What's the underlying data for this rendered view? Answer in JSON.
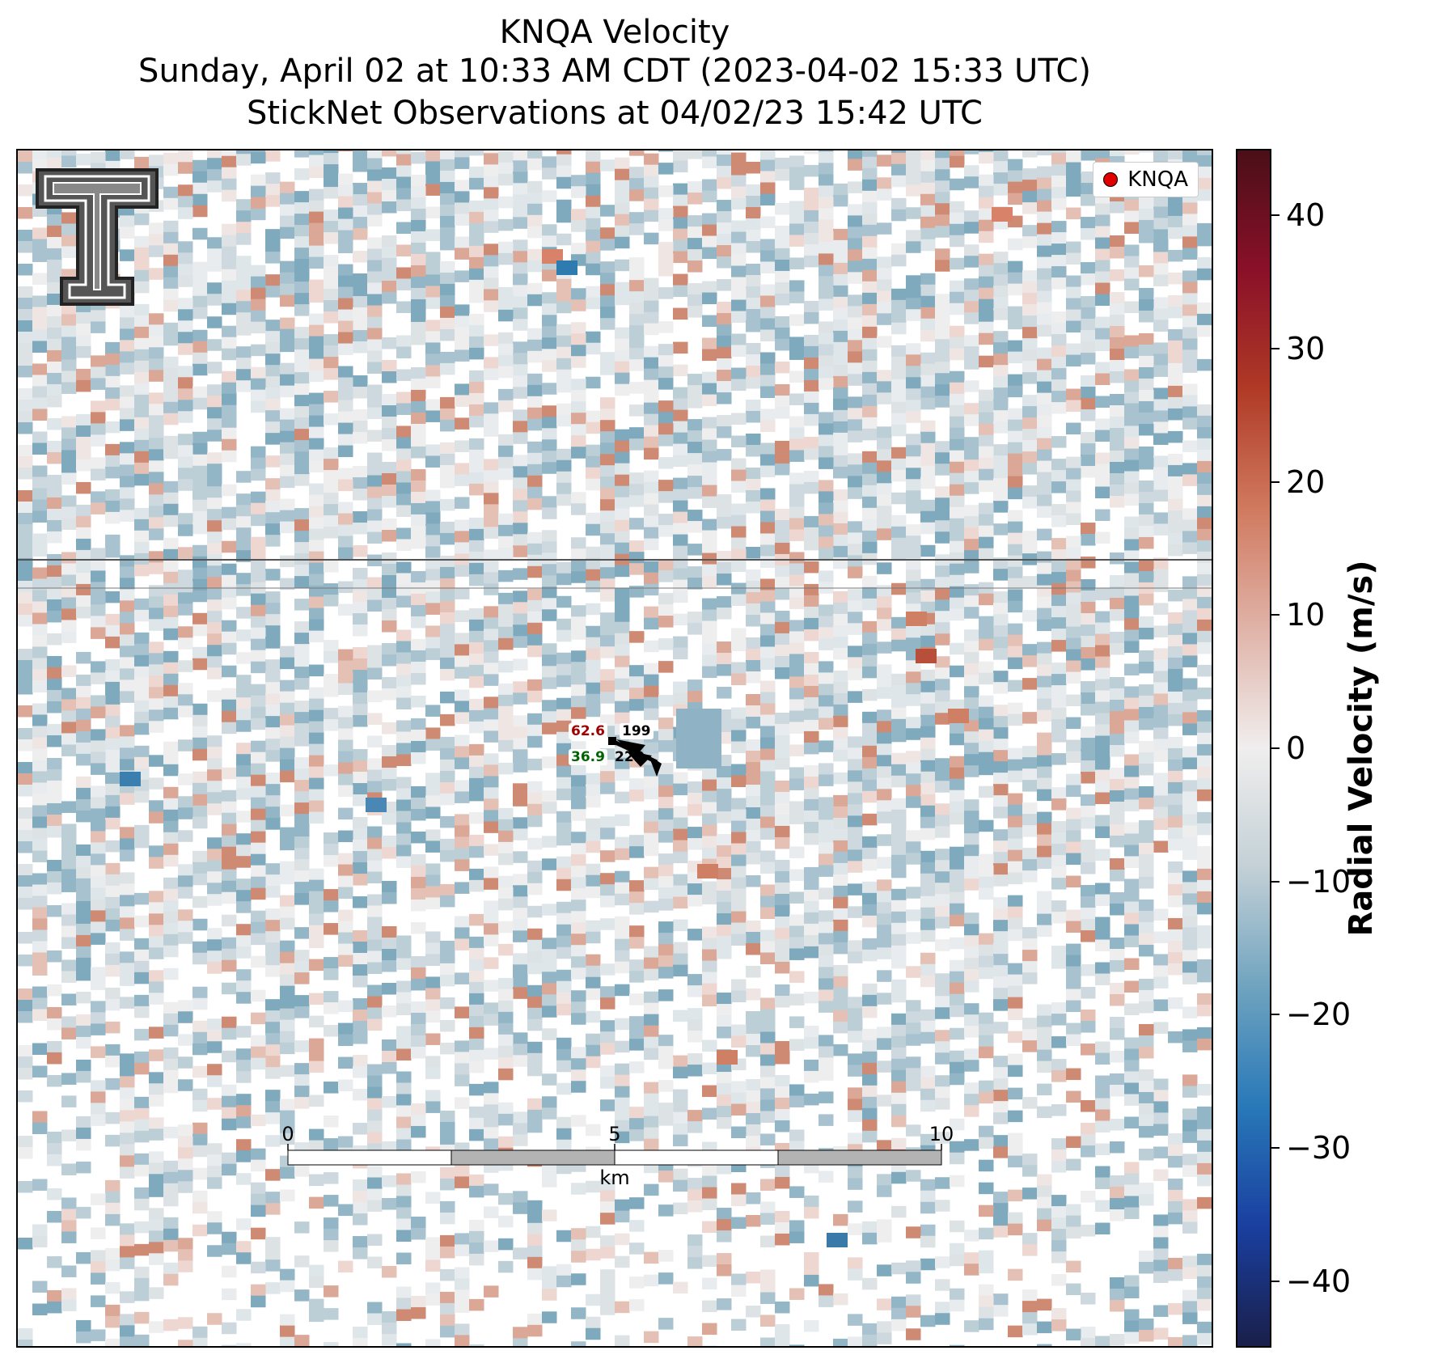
{
  "titles": {
    "line1": "KNQA Velocity",
    "line2": "Sunday, April 02 at 10:33 AM CDT (2023-04-02 15:33 UTC)",
    "line3": "StickNet Observations at 04/02/23 15:42 UTC"
  },
  "legend": {
    "label": "KNQA",
    "marker_color": "#e00000"
  },
  "colorbar": {
    "title": "Radial Velocity (m/s)",
    "min": -45,
    "max": 45,
    "ticks": [
      "40",
      "30",
      "20",
      "10",
      "0",
      "−10",
      "−20",
      "−30",
      "−40"
    ],
    "tick_values": [
      40,
      30,
      20,
      10,
      0,
      -10,
      -20,
      -30,
      -40
    ],
    "colors": [
      "#1a1f4a",
      "#1a3fa0",
      "#2878b8",
      "#6fa3bf",
      "#c3d0d6",
      "#f0eeee",
      "#e0b3a8",
      "#d07a5f",
      "#b03a26",
      "#8a1028",
      "#4a0f18"
    ]
  },
  "scale_bar": {
    "labels": [
      "0",
      "5",
      "10"
    ],
    "unit": "km"
  },
  "station": {
    "temperature": "62.6",
    "dewpoint": "36.9",
    "pressure": "199",
    "station_id": "22B",
    "temp_color": "#a00000",
    "dew_color": "#006400"
  },
  "logo": {
    "name": "texas-tech-double-t-logo"
  },
  "colors": {
    "background": "#ffffff",
    "border": "#000000"
  }
}
